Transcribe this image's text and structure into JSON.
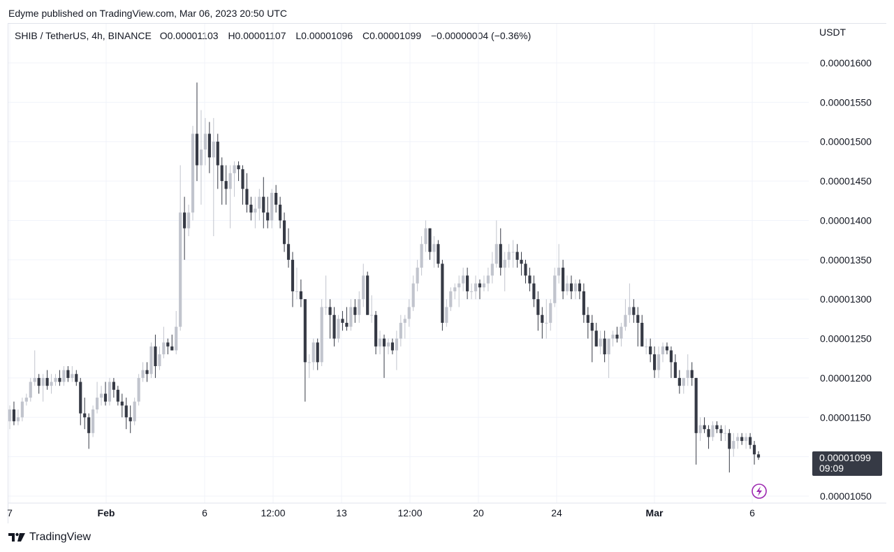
{
  "header": {
    "published": "Edyme published on TradingView.com, Mar 06, 2023 20:50 UTC"
  },
  "legend": {
    "symbol": "SHIB / TetherUS, 4h, BINANCE",
    "open": "O0.00001103",
    "high": "H0.00001107",
    "low": "L0.00001096",
    "close": "C0.00001099",
    "change": "−0.00000004 (−0.36%)"
  },
  "price_axis": {
    "currency": "USDT",
    "ticks": [
      "0.00001600",
      "0.00001550",
      "0.00001500",
      "0.00001450",
      "0.00001400",
      "0.00001350",
      "0.00001300",
      "0.00001250",
      "0.00001200",
      "0.00001150",
      "0.00001050"
    ]
  },
  "time_axis": {
    "ticks": [
      "7",
      "Feb",
      "6",
      "12:00",
      "13",
      "12:00",
      "20",
      "24",
      "Mar",
      "6"
    ]
  },
  "last_price": {
    "value": "0.00001099",
    "countdown": "09:09"
  },
  "footer": {
    "brand": "TradingView"
  },
  "colors": {
    "up": "#c1c4cd",
    "down": "#363a45",
    "grid": "#f0f3fa",
    "text": "#131722",
    "label_bg": "#363a45",
    "flash": "#9c27b0"
  },
  "chart_data": {
    "type": "candlestick",
    "title": "SHIB / TetherUS, 4h, BINANCE",
    "ylabel": "USDT",
    "ylim": [
      1.03e-05,
      1.63e-05
    ],
    "x_tick_labels": [
      "7",
      "Feb",
      "6",
      "12:00",
      "13",
      "12:00",
      "20",
      "24",
      "Mar",
      "6"
    ],
    "y_tick_labels": [
      "0.00001600",
      "0.00001550",
      "0.00001500",
      "0.00001450",
      "0.00001400",
      "0.00001350",
      "0.00001300",
      "0.00001250",
      "0.00001200",
      "0.00001150",
      "0.00001050"
    ],
    "last_value": 1.099e-05,
    "candles": [
      [
        1.145,
        1.165,
        1.135,
        1.16
      ],
      [
        1.16,
        1.17,
        1.14,
        1.145
      ],
      [
        1.145,
        1.16,
        1.14,
        1.15
      ],
      [
        1.15,
        1.175,
        1.145,
        1.17
      ],
      [
        1.17,
        1.18,
        1.165,
        1.175
      ],
      [
        1.175,
        1.2,
        1.17,
        1.195
      ],
      [
        1.195,
        1.235,
        1.19,
        1.2
      ],
      [
        1.2,
        1.205,
        1.18,
        1.19
      ],
      [
        1.19,
        1.205,
        1.17,
        1.2
      ],
      [
        1.2,
        1.21,
        1.185,
        1.19
      ],
      [
        1.19,
        1.205,
        1.18,
        1.195
      ],
      [
        1.195,
        1.205,
        1.19,
        1.2
      ],
      [
        1.2,
        1.21,
        1.19,
        1.195
      ],
      [
        1.195,
        1.215,
        1.19,
        1.21
      ],
      [
        1.21,
        1.215,
        1.195,
        1.2
      ],
      [
        1.2,
        1.215,
        1.195,
        1.205
      ],
      [
        1.205,
        1.21,
        1.19,
        1.195
      ],
      [
        1.195,
        1.2,
        1.14,
        1.155
      ],
      [
        1.155,
        1.175,
        1.135,
        1.15
      ],
      [
        1.15,
        1.155,
        1.11,
        1.13
      ],
      [
        1.13,
        1.165,
        1.125,
        1.16
      ],
      [
        1.16,
        1.195,
        1.155,
        1.175
      ],
      [
        1.175,
        1.19,
        1.165,
        1.18
      ],
      [
        1.18,
        1.195,
        1.165,
        1.17
      ],
      [
        1.17,
        1.2,
        1.165,
        1.195
      ],
      [
        1.195,
        1.2,
        1.175,
        1.185
      ],
      [
        1.185,
        1.19,
        1.165,
        1.17
      ],
      [
        1.17,
        1.18,
        1.15,
        1.165
      ],
      [
        1.165,
        1.175,
        1.135,
        1.15
      ],
      [
        1.15,
        1.165,
        1.13,
        1.145
      ],
      [
        1.145,
        1.175,
        1.14,
        1.17
      ],
      [
        1.17,
        1.205,
        1.165,
        1.2
      ],
      [
        1.2,
        1.22,
        1.195,
        1.21
      ],
      [
        1.21,
        1.22,
        1.195,
        1.205
      ],
      [
        1.205,
        1.245,
        1.2,
        1.24
      ],
      [
        1.24,
        1.255,
        1.2,
        1.215
      ],
      [
        1.215,
        1.24,
        1.21,
        1.23
      ],
      [
        1.23,
        1.265,
        1.225,
        1.245
      ],
      [
        1.245,
        1.25,
        1.23,
        1.24
      ],
      [
        1.24,
        1.255,
        1.235,
        1.235
      ],
      [
        1.235,
        1.285,
        1.23,
        1.265
      ],
      [
        1.265,
        1.47,
        1.26,
        1.41
      ],
      [
        1.41,
        1.43,
        1.35,
        1.39
      ],
      [
        1.39,
        1.42,
        1.38,
        1.41
      ],
      [
        1.41,
        1.52,
        1.4,
        1.51
      ],
      [
        1.51,
        1.575,
        1.45,
        1.47
      ],
      [
        1.47,
        1.54,
        1.42,
        1.49
      ],
      [
        1.49,
        1.53,
        1.47,
        1.51
      ],
      [
        1.51,
        1.525,
        1.46,
        1.48
      ],
      [
        1.48,
        1.53,
        1.38,
        1.5
      ],
      [
        1.5,
        1.51,
        1.44,
        1.47
      ],
      [
        1.47,
        1.48,
        1.42,
        1.45
      ],
      [
        1.45,
        1.47,
        1.42,
        1.44
      ],
      [
        1.44,
        1.47,
        1.39,
        1.46
      ],
      [
        1.46,
        1.475,
        1.43,
        1.47
      ],
      [
        1.47,
        1.475,
        1.45,
        1.465
      ],
      [
        1.465,
        1.47,
        1.42,
        1.44
      ],
      [
        1.44,
        1.46,
        1.41,
        1.42
      ],
      [
        1.42,
        1.43,
        1.4,
        1.41
      ],
      [
        1.41,
        1.43,
        1.39,
        1.415
      ],
      [
        1.415,
        1.44,
        1.4,
        1.43
      ],
      [
        1.43,
        1.455,
        1.39,
        1.41
      ],
      [
        1.41,
        1.43,
        1.39,
        1.4
      ],
      [
        1.4,
        1.44,
        1.39,
        1.435
      ],
      [
        1.435,
        1.445,
        1.41,
        1.42
      ],
      [
        1.42,
        1.43,
        1.39,
        1.4
      ],
      [
        1.4,
        1.41,
        1.36,
        1.37
      ],
      [
        1.37,
        1.39,
        1.34,
        1.35
      ],
      [
        1.35,
        1.36,
        1.29,
        1.31
      ],
      [
        1.31,
        1.34,
        1.3,
        1.31
      ],
      [
        1.31,
        1.325,
        1.29,
        1.3
      ],
      [
        1.3,
        1.3,
        1.17,
        1.22
      ],
      [
        1.22,
        1.23,
        1.2,
        1.22
      ],
      [
        1.22,
        1.25,
        1.21,
        1.245
      ],
      [
        1.245,
        1.25,
        1.21,
        1.22
      ],
      [
        1.22,
        1.3,
        1.215,
        1.29
      ],
      [
        1.29,
        1.33,
        1.28,
        1.29
      ],
      [
        1.29,
        1.3,
        1.25,
        1.28
      ],
      [
        1.28,
        1.29,
        1.24,
        1.25
      ],
      [
        1.25,
        1.28,
        1.245,
        1.275
      ],
      [
        1.275,
        1.285,
        1.26,
        1.27
      ],
      [
        1.27,
        1.29,
        1.26,
        1.265
      ],
      [
        1.265,
        1.3,
        1.26,
        1.29
      ],
      [
        1.29,
        1.3,
        1.27,
        1.28
      ],
      [
        1.28,
        1.31,
        1.27,
        1.3
      ],
      [
        1.3,
        1.345,
        1.29,
        1.33
      ],
      [
        1.33,
        1.335,
        1.28,
        1.28
      ],
      [
        1.28,
        1.305,
        1.27,
        1.28
      ],
      [
        1.28,
        1.285,
        1.23,
        1.24
      ],
      [
        1.24,
        1.26,
        1.23,
        1.25
      ],
      [
        1.25,
        1.255,
        1.2,
        1.24
      ],
      [
        1.24,
        1.25,
        1.23,
        1.245
      ],
      [
        1.245,
        1.25,
        1.23,
        1.235
      ],
      [
        1.235,
        1.26,
        1.21,
        1.25
      ],
      [
        1.25,
        1.28,
        1.24,
        1.27
      ],
      [
        1.27,
        1.28,
        1.25,
        1.275
      ],
      [
        1.275,
        1.3,
        1.265,
        1.29
      ],
      [
        1.29,
        1.33,
        1.285,
        1.32
      ],
      [
        1.32,
        1.35,
        1.31,
        1.34
      ],
      [
        1.34,
        1.38,
        1.33,
        1.37
      ],
      [
        1.37,
        1.4,
        1.36,
        1.39
      ],
      [
        1.39,
        1.39,
        1.35,
        1.36
      ],
      [
        1.36,
        1.38,
        1.34,
        1.37
      ],
      [
        1.37,
        1.375,
        1.34,
        1.345
      ],
      [
        1.345,
        1.35,
        1.26,
        1.27
      ],
      [
        1.27,
        1.3,
        1.265,
        1.29
      ],
      [
        1.29,
        1.315,
        1.285,
        1.31
      ],
      [
        1.31,
        1.32,
        1.3,
        1.315
      ],
      [
        1.315,
        1.33,
        1.29,
        1.32
      ],
      [
        1.32,
        1.34,
        1.31,
        1.33
      ],
      [
        1.33,
        1.34,
        1.3,
        1.31
      ],
      [
        1.31,
        1.32,
        1.3,
        1.31
      ],
      [
        1.31,
        1.33,
        1.3,
        1.32
      ],
      [
        1.32,
        1.325,
        1.3,
        1.315
      ],
      [
        1.315,
        1.33,
        1.31,
        1.32
      ],
      [
        1.32,
        1.34,
        1.31,
        1.33
      ],
      [
        1.33,
        1.36,
        1.32,
        1.345
      ],
      [
        1.345,
        1.4,
        1.34,
        1.37
      ],
      [
        1.37,
        1.39,
        1.33,
        1.34
      ],
      [
        1.34,
        1.36,
        1.31,
        1.35
      ],
      [
        1.35,
        1.37,
        1.34,
        1.36
      ],
      [
        1.36,
        1.375,
        1.34,
        1.36
      ],
      [
        1.36,
        1.37,
        1.34,
        1.35
      ],
      [
        1.35,
        1.36,
        1.33,
        1.345
      ],
      [
        1.345,
        1.35,
        1.32,
        1.33
      ],
      [
        1.33,
        1.34,
        1.31,
        1.32
      ],
      [
        1.32,
        1.33,
        1.29,
        1.3
      ],
      [
        1.3,
        1.31,
        1.26,
        1.28
      ],
      [
        1.28,
        1.29,
        1.25,
        1.27
      ],
      [
        1.27,
        1.3,
        1.25,
        1.27
      ],
      [
        1.27,
        1.3,
        1.26,
        1.295
      ],
      [
        1.295,
        1.34,
        1.29,
        1.33
      ],
      [
        1.33,
        1.37,
        1.32,
        1.34
      ],
      [
        1.34,
        1.35,
        1.3,
        1.31
      ],
      [
        1.31,
        1.33,
        1.305,
        1.32
      ],
      [
        1.32,
        1.33,
        1.3,
        1.31
      ],
      [
        1.31,
        1.325,
        1.3,
        1.32
      ],
      [
        1.32,
        1.325,
        1.3,
        1.31
      ],
      [
        1.31,
        1.32,
        1.27,
        1.28
      ],
      [
        1.28,
        1.29,
        1.25,
        1.27
      ],
      [
        1.27,
        1.28,
        1.22,
        1.26
      ],
      [
        1.26,
        1.27,
        1.24,
        1.24
      ],
      [
        1.24,
        1.26,
        1.23,
        1.25
      ],
      [
        1.25,
        1.26,
        1.22,
        1.23
      ],
      [
        1.23,
        1.25,
        1.2,
        1.25
      ],
      [
        1.25,
        1.26,
        1.24,
        1.255
      ],
      [
        1.255,
        1.265,
        1.245,
        1.25
      ],
      [
        1.25,
        1.27,
        1.24,
        1.265
      ],
      [
        1.265,
        1.3,
        1.26,
        1.28
      ],
      [
        1.28,
        1.32,
        1.27,
        1.29
      ],
      [
        1.29,
        1.3,
        1.27,
        1.28
      ],
      [
        1.28,
        1.29,
        1.24,
        1.27
      ],
      [
        1.27,
        1.28,
        1.24,
        1.24
      ],
      [
        1.24,
        1.25,
        1.23,
        1.24
      ],
      [
        1.24,
        1.25,
        1.22,
        1.23
      ],
      [
        1.23,
        1.24,
        1.2,
        1.21
      ],
      [
        1.21,
        1.24,
        1.2,
        1.23
      ],
      [
        1.23,
        1.245,
        1.22,
        1.24
      ],
      [
        1.24,
        1.245,
        1.23,
        1.235
      ],
      [
        1.235,
        1.24,
        1.2,
        1.22
      ],
      [
        1.22,
        1.23,
        1.2,
        1.2
      ],
      [
        1.2,
        1.21,
        1.18,
        1.19
      ],
      [
        1.19,
        1.2,
        1.18,
        1.2
      ],
      [
        1.2,
        1.23,
        1.19,
        1.21
      ],
      [
        1.21,
        1.22,
        1.19,
        1.2
      ],
      [
        1.2,
        1.2,
        1.09,
        1.13
      ],
      [
        1.13,
        1.15,
        1.12,
        1.14
      ],
      [
        1.14,
        1.15,
        1.13,
        1.135
      ],
      [
        1.135,
        1.14,
        1.11,
        1.125
      ],
      [
        1.125,
        1.145,
        1.12,
        1.14
      ],
      [
        1.14,
        1.145,
        1.13,
        1.135
      ],
      [
        1.135,
        1.14,
        1.12,
        1.13
      ],
      [
        1.13,
        1.14,
        1.12,
        1.13
      ],
      [
        1.13,
        1.135,
        1.08,
        1.11
      ],
      [
        1.11,
        1.13,
        1.1,
        1.12
      ],
      [
        1.12,
        1.13,
        1.11,
        1.125
      ],
      [
        1.125,
        1.13,
        1.115,
        1.12
      ],
      [
        1.12,
        1.13,
        1.11,
        1.125
      ],
      [
        1.125,
        1.13,
        1.11,
        1.115
      ],
      [
        1.115,
        1.12,
        1.09,
        1.103
      ],
      [
        1.103,
        1.107,
        1.096,
        1.099
      ]
    ],
    "candle_scale": "values in units of 0.00001 USDT, [open, high, low, close]"
  }
}
